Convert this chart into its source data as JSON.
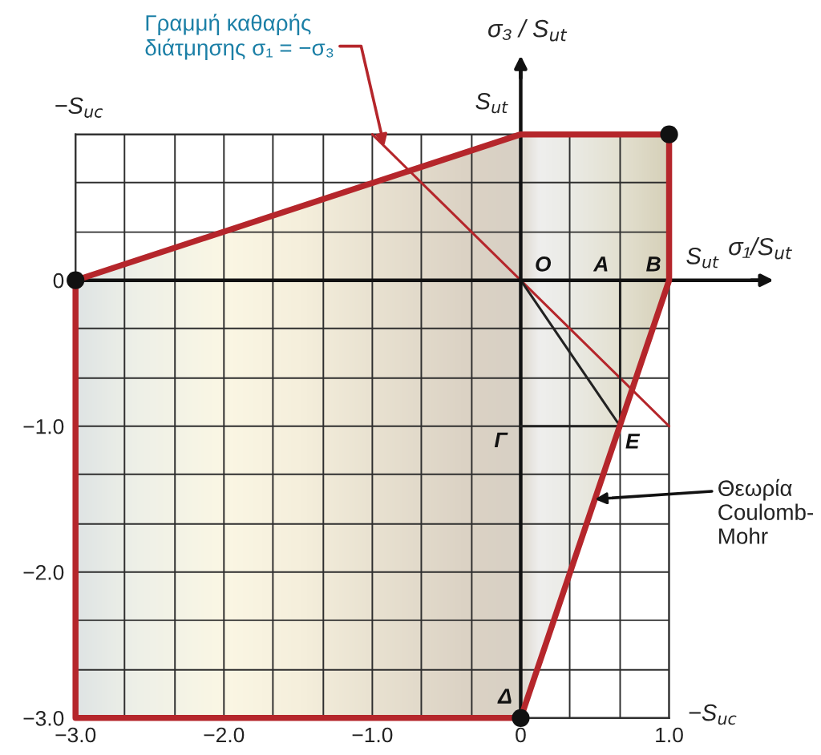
{
  "chart_data": {
    "type": "line",
    "xlabel": "σ₁/S$_{ut}$",
    "ylabel": "σ₃ / S$_{ut}$",
    "xlim": [
      -3,
      1
    ],
    "ylim": [
      -3,
      1
    ],
    "xticks": [
      {
        "value": -3,
        "label": "−3.0"
      },
      {
        "value": -2.67,
        "label": null
      },
      {
        "value": -2.33,
        "label": null
      },
      {
        "value": -2,
        "label": "−2.0"
      },
      {
        "value": -1.67,
        "label": null
      },
      {
        "value": -1.33,
        "label": null
      },
      {
        "value": -1,
        "label": "−1.0"
      },
      {
        "value": -0.67,
        "label": null
      },
      {
        "value": -0.33,
        "label": null
      },
      0,
      {
        "value": 0.33,
        "label": null
      },
      {
        "value": 0.67,
        "label": null
      },
      {
        "value": 1,
        "label": "1.0"
      }
    ],
    "yticks": [
      {
        "value": -3,
        "label": "−3.0"
      },
      {
        "value": -2.67,
        "label": null
      },
      {
        "value": -2.33,
        "label": null
      },
      {
        "value": -2,
        "label": "−2.0"
      },
      {
        "value": -1.67,
        "label": null
      },
      {
        "value": -1.33,
        "label": null
      },
      {
        "value": -1,
        "label": "−1.0"
      },
      {
        "value": -0.67,
        "label": null
      },
      {
        "value": -0.33,
        "label": null
      },
      0,
      {
        "value": 0.33,
        "label": null
      },
      {
        "value": 0.67,
        "label": null
      },
      {
        "value": 1,
        "label": null
      }
    ],
    "grid": true,
    "series": [
      {
        "color": "#b5262b",
        "x": [
          -3,
          0,
          1
        ],
        "values": [
          0,
          1,
          1
        ]
      },
      {
        "color": "#b5262b",
        "x": [
          -3,
          -3,
          0,
          1,
          1
        ],
        "values": [
          0,
          -3,
          -3,
          0,
          1
        ]
      },
      {
        "type": "scatter",
        "color": "#111111",
        "marker": "circle",
        "x": [
          -3,
          1,
          0
        ],
        "values": [
          0,
          1,
          -3
        ]
      },
      {
        "color": "#b5262b",
        "x": [
          -1,
          1
        ],
        "values": [
          1,
          -1
        ]
      },
      {
        "color": "#222222",
        "x": [
          0,
          0.67,
          0.67
        ],
        "values": [
          0,
          -1,
          0
        ]
      },
      {
        "color": "#222222",
        "x": [
          0,
          0.67
        ],
        "values": [
          -1,
          -1
        ]
      }
    ],
    "ref_lines": [
      {
        "axis": "y",
        "value": 0,
        "color": "#111111"
      },
      {
        "axis": "x",
        "value": 0,
        "color": "#111111"
      }
    ],
    "annotations": [
      {
        "text": "Γραμμή καθαρής\nδιάτμησης σ₁ = −σ₃",
        "x": -0.92,
        "y": 0.92
      },
      {
        "text": "Θεωρία\nCoulomb-\nMohr",
        "x": 0.5,
        "y": -1.5
      },
      {
        "text": "O",
        "x": 0,
        "y": 0
      },
      {
        "text": "A",
        "x": 0.67,
        "y": 0
      },
      {
        "text": "B",
        "x": 1,
        "y": 0
      },
      {
        "text": "Γ",
        "x": 0,
        "y": -1
      },
      {
        "text": "E",
        "x": 0.67,
        "y": -1
      },
      {
        "text": "Δ",
        "x": 0,
        "y": -3
      },
      {
        "text": "S$_{ut}$",
        "x": 0,
        "y": 1
      },
      "−S$_{uc}$",
      {
        "text": "S$_{ut}$",
        "x": 1,
        "y": 0
      },
      "−S$_{uc}$"
    ]
  }
}
